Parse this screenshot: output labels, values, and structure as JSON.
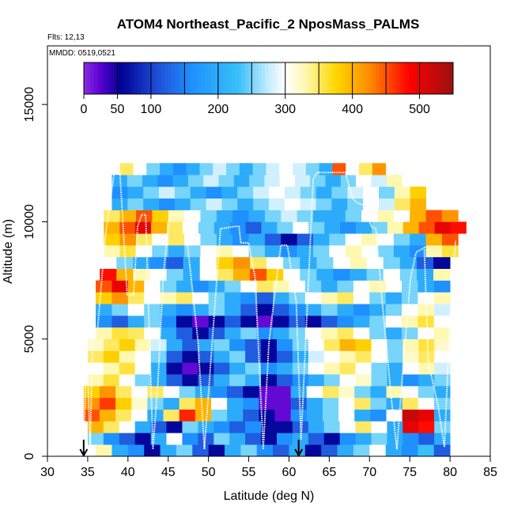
{
  "chart_data": {
    "type": "heatmap",
    "title": "ATOM4 Northeast_Pacific_2 NposMass_PALMS",
    "flights_label": "Flts: 12,13",
    "dates_label": "MMDD: 0519,0521",
    "xlabel": "Latitude (deg N)",
    "ylabel": "Altitude (m)",
    "xlim": [
      30,
      85
    ],
    "ylim": [
      0,
      17500
    ],
    "x_ticks": [
      "30",
      "35",
      "40",
      "45",
      "50",
      "55",
      "60",
      "65",
      "70",
      "75",
      "80",
      "85"
    ],
    "y_ticks": [
      "0",
      "5000",
      "10000",
      "15000"
    ],
    "colorbar": {
      "range": [
        0,
        550
      ],
      "tick_values": [
        0,
        50,
        100,
        200,
        300,
        400,
        500
      ],
      "tick_labels": [
        "0",
        "50",
        "100",
        "200",
        "300",
        "400",
        "500"
      ],
      "divider_values": [
        50,
        100,
        150,
        200,
        250,
        300,
        350,
        400,
        450,
        500
      ],
      "color_stops": [
        {
          "v": 0,
          "c": "#8a2be2"
        },
        {
          "v": 25,
          "c": "#5a00d0"
        },
        {
          "v": 55,
          "c": "#000095"
        },
        {
          "v": 110,
          "c": "#1f4fd8"
        },
        {
          "v": 160,
          "c": "#1e90ff"
        },
        {
          "v": 230,
          "c": "#38c0f8"
        },
        {
          "v": 275,
          "c": "#c6ecff"
        },
        {
          "v": 300,
          "c": "#ffffff"
        },
        {
          "v": 330,
          "c": "#fff8b0"
        },
        {
          "v": 375,
          "c": "#ffd700"
        },
        {
          "v": 425,
          "c": "#ff8c00"
        },
        {
          "v": 485,
          "c": "#ff0000"
        },
        {
          "v": 550,
          "c": "#9b1010"
        }
      ]
    },
    "arrows_at_latitude": [
      34.5,
      61.2
    ],
    "altitude_bin_m": 500,
    "heatmap_rows": [
      {
        "y0": 0,
        "x0": 36,
        "x1": 80,
        "v": [
          330,
          200,
          160,
          60,
          200,
          250,
          120,
          60,
          200,
          250,
          160,
          120,
          200,
          60,
          120,
          200,
          250,
          300,
          200,
          160,
          230,
          120
        ]
      },
      {
        "y0": 500,
        "x0": 35,
        "x1": 80,
        "v": [
          250,
          160,
          120,
          60,
          200,
          300,
          160,
          120,
          250,
          200,
          120,
          60,
          160,
          200,
          120,
          60,
          160,
          200,
          250,
          200,
          160,
          120,
          200
        ]
      },
      {
        "y0": 1000,
        "x0": 35,
        "x1": 80,
        "v": [
          400,
          350,
          300,
          200,
          120,
          60,
          250,
          200,
          160,
          120,
          160,
          60,
          60,
          120,
          200,
          250,
          300,
          350,
          300,
          200,
          500,
          480,
          250
        ]
      },
      {
        "y0": 1500,
        "x0": 34.5,
        "x1": 80,
        "v": [
          450,
          400,
          350,
          300,
          200,
          350,
          470,
          400,
          250,
          200,
          120,
          60,
          20,
          160,
          200,
          250,
          300,
          200,
          160,
          300,
          520,
          500,
          200
        ]
      },
      {
        "y0": 2000,
        "x0": 34.5,
        "x1": 80,
        "v": [
          420,
          460,
          380,
          320,
          250,
          200,
          350,
          400,
          300,
          200,
          160,
          20,
          20,
          120,
          200,
          250,
          300,
          350,
          250,
          200,
          350,
          300,
          250
        ]
      },
      {
        "y0": 2500,
        "x0": 34.5,
        "x1": 80,
        "v": [
          380,
          420,
          350,
          300,
          350,
          300,
          250,
          200,
          160,
          120,
          60,
          20,
          20,
          200,
          300,
          350,
          320,
          250,
          200,
          330,
          300,
          250,
          200
        ]
      },
      {
        "y0": 3000,
        "x0": 35,
        "x1": 80,
        "v": [
          330,
          360,
          300,
          250,
          200,
          120,
          60,
          120,
          200,
          250,
          200,
          60,
          120,
          160,
          200,
          250,
          300,
          320,
          250,
          200,
          160,
          200,
          250
        ]
      },
      {
        "y0": 3500,
        "x0": 35,
        "x1": 80,
        "v": [
          300,
          330,
          360,
          300,
          200,
          60,
          20,
          60,
          120,
          200,
          250,
          160,
          200,
          250,
          300,
          330,
          350,
          300,
          250,
          200,
          300,
          330,
          280
        ]
      },
      {
        "y0": 4000,
        "x0": 35,
        "x1": 80,
        "v": [
          350,
          380,
          330,
          300,
          250,
          120,
          60,
          120,
          200,
          250,
          120,
          60,
          120,
          200,
          280,
          300,
          330,
          350,
          300,
          250,
          320,
          350,
          300
        ]
      },
      {
        "y0": 4500,
        "x0": 35,
        "x1": 80,
        "v": [
          320,
          350,
          380,
          330,
          280,
          200,
          120,
          200,
          250,
          160,
          120,
          60,
          160,
          250,
          300,
          350,
          400,
          380,
          300,
          250,
          330,
          360,
          320
        ]
      },
      {
        "y0": 5000,
        "x0": 36,
        "x1": 80,
        "v": [
          330,
          360,
          350,
          300,
          200,
          120,
          60,
          120,
          200,
          250,
          160,
          200,
          250,
          300,
          330,
          350,
          300,
          250,
          200,
          250,
          300,
          330
        ]
      },
      {
        "y0": 5500,
        "x0": 36,
        "x1": 80,
        "v": [
          160,
          120,
          200,
          250,
          160,
          60,
          20,
          60,
          120,
          60,
          20,
          60,
          120,
          60,
          120,
          160,
          200,
          250,
          300,
          330,
          360,
          300
        ]
      },
      {
        "y0": 6000,
        "x0": 36,
        "x1": 80,
        "v": [
          200,
          250,
          300,
          250,
          200,
          160,
          200,
          250,
          200,
          120,
          60,
          120,
          160,
          200,
          250,
          200,
          160,
          200,
          250,
          300,
          330,
          280
        ]
      },
      {
        "y0": 6500,
        "x0": 36,
        "x1": 80,
        "v": [
          380,
          420,
          350,
          300,
          330,
          350,
          300,
          250,
          200,
          160,
          120,
          200,
          250,
          300,
          330,
          350,
          300,
          250,
          200,
          250,
          300,
          330
        ]
      },
      {
        "y0": 7000,
        "x0": 36,
        "x1": 80,
        "v": [
          450,
          500,
          400,
          300,
          250,
          200,
          160,
          200,
          250,
          300,
          350,
          330,
          300,
          250,
          200,
          250,
          300,
          330,
          300,
          250,
          200,
          160
        ]
      },
      {
        "y0": 7500,
        "x0": 36.5,
        "x1": 80,
        "v": [
          480,
          400,
          330,
          300,
          250,
          200,
          300,
          350,
          400,
          450,
          380,
          300,
          250,
          200,
          160,
          200,
          250,
          300,
          250,
          200,
          330
        ]
      },
      {
        "y0": 8000,
        "x0": 36.5,
        "x1": 80,
        "v": [
          300,
          250,
          200,
          160,
          120,
          200,
          300,
          380,
          420,
          350,
          300,
          250,
          200,
          250,
          300,
          330,
          300,
          250,
          200,
          120,
          60
        ]
      },
      {
        "y0": 8500,
        "x0": 37,
        "x1": 81,
        "v": [
          330,
          360,
          300,
          250,
          200,
          250,
          300,
          330,
          300,
          250,
          200,
          160,
          200,
          250,
          300,
          330,
          300,
          250,
          200,
          160,
          330,
          360
        ]
      },
      {
        "y0": 9000,
        "x0": 37,
        "x1": 81,
        "v": [
          380,
          420,
          350,
          300,
          350,
          300,
          250,
          200,
          160,
          200,
          120,
          60,
          120,
          200,
          250,
          300,
          330,
          300,
          250,
          200,
          400,
          450
        ]
      },
      {
        "y0": 9500,
        "x0": 37,
        "x1": 82,
        "v": [
          400,
          450,
          500,
          400,
          350,
          300,
          250,
          200,
          160,
          120,
          200,
          250,
          300,
          250,
          200,
          160,
          200,
          250,
          330,
          400,
          450,
          500,
          480
        ]
      },
      {
        "y0": 10000,
        "x0": 37,
        "x1": 81,
        "v": [
          350,
          400,
          450,
          380,
          330,
          300,
          250,
          200,
          160,
          200,
          250,
          280,
          250,
          200,
          200,
          250,
          300,
          330,
          300,
          400,
          450,
          420
        ]
      },
      {
        "y0": 10500,
        "x0": 38,
        "x1": 77,
        "v": [
          200,
          250,
          200,
          160,
          200,
          250,
          280,
          250,
          200,
          250,
          280,
          300,
          280,
          250,
          200,
          250,
          300,
          280,
          350,
          400
        ]
      },
      {
        "y0": 11000,
        "x0": 38,
        "x1": 77,
        "v": [
          160,
          200,
          250,
          280,
          250,
          200,
          160,
          200,
          250,
          280,
          300,
          280,
          250,
          200,
          250,
          280,
          300,
          250,
          330,
          380
        ]
      },
      {
        "y0": 11500,
        "x0": 38,
        "x1": 74,
        "v": [
          200,
          250,
          200,
          160,
          200,
          250,
          280,
          250,
          200,
          250,
          280,
          300,
          280,
          250,
          200,
          250,
          300,
          280,
          330
        ]
      },
      {
        "y0": 12000,
        "x0": 39,
        "x1": 72,
        "v": [
          350,
          300,
          250,
          200,
          160,
          200,
          250,
          280,
          250,
          200,
          250,
          280,
          300,
          280,
          250,
          200,
          450,
          300,
          350,
          420
        ]
      }
    ],
    "flight_track": [
      [
        34.6,
        1500
      ],
      [
        34.9,
        4900
      ],
      [
        35.3,
        200
      ],
      [
        35.6,
        4900
      ],
      [
        36.2,
        5300
      ],
      [
        37.2,
        9400
      ],
      [
        38.3,
        12100
      ],
      [
        39.0,
        12150
      ],
      [
        39.9,
        6900
      ],
      [
        40.7,
        6900
      ],
      [
        41.2,
        9800
      ],
      [
        41.7,
        10300
      ],
      [
        42.2,
        10300
      ],
      [
        43.1,
        300
      ],
      [
        43.7,
        3000
      ],
      [
        44.4,
        7800
      ],
      [
        45.2,
        10300
      ],
      [
        47.0,
        10300
      ],
      [
        48.7,
        4900
      ],
      [
        49.5,
        300
      ],
      [
        50.7,
        6000
      ],
      [
        51.5,
        9700
      ],
      [
        53.2,
        9800
      ],
      [
        53.8,
        9800
      ],
      [
        54.0,
        9100
      ],
      [
        55.0,
        9100
      ],
      [
        55.8,
        7600
      ],
      [
        56.8,
        300
      ],
      [
        57.5,
        4800
      ],
      [
        58.3,
        7100
      ],
      [
        59.0,
        9000
      ],
      [
        59.8,
        9000
      ],
      [
        60.9,
        6600
      ],
      [
        61.5,
        700
      ],
      [
        62.4,
        7300
      ],
      [
        63.0,
        11800
      ],
      [
        63.5,
        12100
      ],
      [
        67.0,
        12100
      ],
      [
        67.9,
        11000
      ],
      [
        68.5,
        10800
      ],
      [
        69.4,
        10700
      ],
      [
        70.2,
        9800
      ],
      [
        70.8,
        9700
      ],
      [
        71.5,
        6900
      ],
      [
        72.7,
        2500
      ],
      [
        73.4,
        300
      ],
      [
        74.1,
        3500
      ],
      [
        75.1,
        7600
      ],
      [
        75.8,
        8700
      ],
      [
        76.8,
        8900
      ],
      [
        77.3,
        4000
      ],
      [
        78.5,
        2200
      ],
      [
        79.3,
        400
      ],
      [
        80.0,
        5900
      ],
      [
        80.7,
        9200
      ]
    ]
  }
}
